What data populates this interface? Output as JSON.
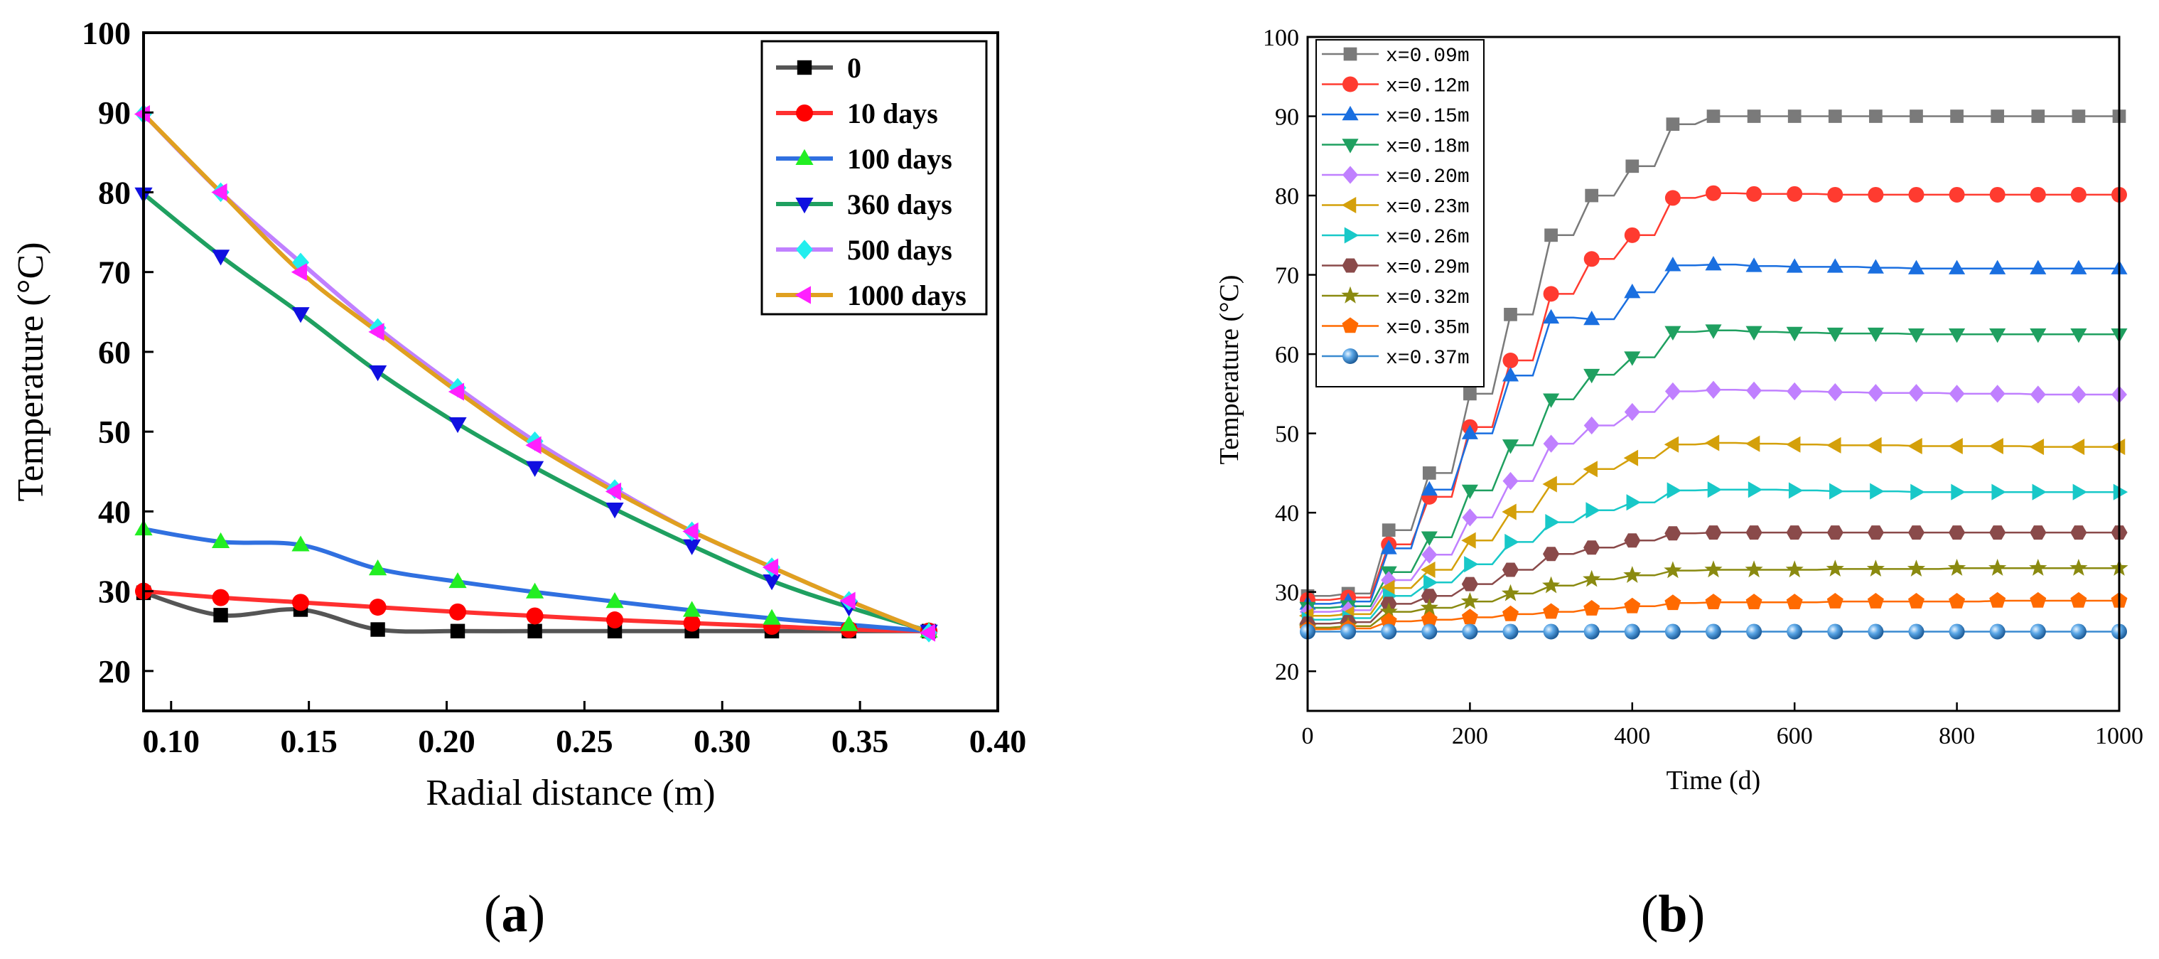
{
  "chart_data": [
    {
      "type": "line",
      "panel_label": "(a)",
      "panel_letter": "a",
      "xlabel": "Radial distance (m)",
      "ylabel": "Temperature (°C)",
      "xlim": [
        0.09,
        0.4
      ],
      "ylim": [
        15,
        100
      ],
      "xticks": [
        "0.10",
        "0.15",
        "0.20",
        "0.25",
        "0.30",
        "0.35",
        "0.40"
      ],
      "yticks": [
        "20",
        "30",
        "40",
        "50",
        "60",
        "70",
        "80",
        "90",
        "100"
      ],
      "legend_position": "top-right",
      "x": [
        0.09,
        0.118,
        0.147,
        0.175,
        0.204,
        0.232,
        0.261,
        0.289,
        0.318,
        0.346,
        0.375
      ],
      "series": [
        {
          "name": "0",
          "color": "#555555",
          "marker": "square",
          "marker_color": "#000000",
          "values": [
            29.8,
            27.0,
            27.7,
            25.2,
            25.0,
            25.0,
            25.0,
            25.0,
            25.0,
            25.0,
            25.0
          ]
        },
        {
          "name": "10 days",
          "color": "#ff3030",
          "marker": "circle",
          "marker_color": "#ff0000",
          "values": [
            30.0,
            29.2,
            28.6,
            28.0,
            27.4,
            26.9,
            26.4,
            26.0,
            25.6,
            25.2,
            25.0
          ]
        },
        {
          "name": "100 days",
          "color": "#3070e0",
          "marker": "triangle-up",
          "marker_color": "#22ee22",
          "values": [
            37.8,
            36.2,
            35.8,
            32.8,
            31.2,
            29.9,
            28.7,
            27.6,
            26.6,
            25.8,
            25.0
          ]
        },
        {
          "name": "360 days",
          "color": "#1fa060",
          "marker": "triangle-down",
          "marker_color": "#1010e0",
          "values": [
            79.8,
            72.0,
            64.8,
            57.5,
            51.0,
            45.5,
            40.3,
            35.7,
            31.3,
            28.0,
            25.0
          ]
        },
        {
          "name": "500 days",
          "color": "#c080ff",
          "marker": "diamond",
          "marker_color": "#22eeee",
          "values": [
            89.8,
            80.0,
            71.2,
            63.0,
            55.5,
            48.8,
            42.8,
            37.5,
            33.0,
            28.8,
            24.8
          ]
        },
        {
          "name": "1000 days",
          "color": "#e0a020",
          "marker": "triangle-left",
          "marker_color": "#ff20ff",
          "values": [
            89.8,
            80.0,
            70.0,
            62.5,
            55.0,
            48.3,
            42.5,
            37.5,
            33.0,
            28.8,
            24.8
          ]
        }
      ]
    },
    {
      "type": "line",
      "panel_label": "(b)",
      "panel_letter": "b",
      "xlabel": "Time (d)",
      "ylabel": "Temperature (°C)",
      "xlim": [
        0,
        1000
      ],
      "ylim": [
        15,
        100
      ],
      "xticks": [
        "0",
        "200",
        "400",
        "600",
        "800",
        "1000"
      ],
      "yticks": [
        "20",
        "30",
        "40",
        "50",
        "60",
        "70",
        "80",
        "90",
        "100"
      ],
      "legend_position": "top-left",
      "x": [
        0,
        50,
        100,
        150,
        200,
        250,
        300,
        350,
        400,
        450,
        500,
        550,
        600,
        650,
        700,
        750,
        800,
        850,
        900,
        950,
        1000
      ],
      "series": [
        {
          "name": "x=0.09m",
          "color": "#7a7a7a",
          "marker": "square",
          "values": [
            29.5,
            29.8,
            37.8,
            45.0,
            55.0,
            65.0,
            75.0,
            80.0,
            83.7,
            89.0,
            90.0,
            90.0,
            90.0,
            90.0,
            90.0,
            90.0,
            90.0,
            90.0,
            90.0,
            90.0,
            90.0
          ]
        },
        {
          "name": "x=0.12m",
          "color": "#ff3b30",
          "marker": "circle",
          "values": [
            29.0,
            29.3,
            36.0,
            42.0,
            50.8,
            59.2,
            67.6,
            72.0,
            75.0,
            79.7,
            80.3,
            80.2,
            80.2,
            80.1,
            80.1,
            80.1,
            80.1,
            80.1,
            80.1,
            80.1,
            80.1
          ]
        },
        {
          "name": "x=0.15m",
          "color": "#1a6fe0",
          "marker": "triangle-up",
          "values": [
            28.5,
            28.8,
            35.5,
            42.9,
            50.0,
            57.3,
            64.6,
            64.4,
            67.8,
            71.2,
            71.3,
            71.1,
            71.0,
            71.0,
            70.9,
            70.8,
            70.8,
            70.8,
            70.8,
            70.8,
            70.8
          ]
        },
        {
          "name": "x=0.18m",
          "color": "#1fa060",
          "marker": "triangle-down",
          "values": [
            28.0,
            28.2,
            32.5,
            36.9,
            42.8,
            48.5,
            54.3,
            57.4,
            59.6,
            62.8,
            63.0,
            62.8,
            62.7,
            62.6,
            62.6,
            62.5,
            62.5,
            62.5,
            62.5,
            62.5,
            62.5
          ]
        },
        {
          "name": "x=0.20m",
          "color": "#c080ff",
          "marker": "diamond",
          "values": [
            27.5,
            27.7,
            31.5,
            34.7,
            39.4,
            44.0,
            48.7,
            51.0,
            52.7,
            55.3,
            55.5,
            55.4,
            55.3,
            55.2,
            55.1,
            55.1,
            55.0,
            55.0,
            54.9,
            54.9,
            54.9
          ]
        },
        {
          "name": "x=0.23m",
          "color": "#d4a00a",
          "marker": "triangle-left",
          "values": [
            27.0,
            27.2,
            30.5,
            32.8,
            36.5,
            40.1,
            43.6,
            45.5,
            46.9,
            48.6,
            48.8,
            48.7,
            48.6,
            48.5,
            48.5,
            48.4,
            48.4,
            48.4,
            48.3,
            48.3,
            48.3
          ]
        },
        {
          "name": "x=0.26m",
          "color": "#18c8c8",
          "marker": "triangle-right",
          "values": [
            26.5,
            26.7,
            29.5,
            31.2,
            33.5,
            36.3,
            38.8,
            40.3,
            41.3,
            42.8,
            42.9,
            42.9,
            42.8,
            42.7,
            42.7,
            42.6,
            42.6,
            42.6,
            42.6,
            42.6,
            42.6
          ]
        },
        {
          "name": "x=0.29m",
          "color": "#8a4a4a",
          "marker": "hexagon",
          "values": [
            26.0,
            26.2,
            28.5,
            29.5,
            31.0,
            32.8,
            34.8,
            35.6,
            36.5,
            37.4,
            37.5,
            37.5,
            37.5,
            37.5,
            37.5,
            37.5,
            37.5,
            37.5,
            37.5,
            37.5,
            37.5
          ]
        },
        {
          "name": "x=0.32m",
          "color": "#8a8a10",
          "marker": "star",
          "values": [
            25.5,
            25.7,
            27.5,
            28.0,
            28.8,
            29.8,
            30.8,
            31.6,
            32.1,
            32.7,
            32.8,
            32.8,
            32.8,
            32.9,
            32.9,
            32.9,
            33.0,
            33.0,
            33.0,
            33.0,
            33.0
          ]
        },
        {
          "name": "x=0.35m",
          "color": "#ff6a00",
          "marker": "pentagon",
          "values": [
            25.3,
            25.4,
            26.3,
            26.5,
            26.8,
            27.2,
            27.5,
            27.9,
            28.2,
            28.6,
            28.7,
            28.7,
            28.7,
            28.8,
            28.8,
            28.8,
            28.8,
            28.9,
            28.9,
            28.9,
            28.9
          ]
        },
        {
          "name": "x=0.37m",
          "color": "#3a8ad0",
          "marker": "sphere",
          "values": [
            25.0,
            25.0,
            25.0,
            25.0,
            25.0,
            25.0,
            25.0,
            25.0,
            25.0,
            25.0,
            25.0,
            25.0,
            25.0,
            25.0,
            25.0,
            25.0,
            25.0,
            25.0,
            25.0,
            25.0,
            25.0
          ]
        }
      ]
    }
  ]
}
